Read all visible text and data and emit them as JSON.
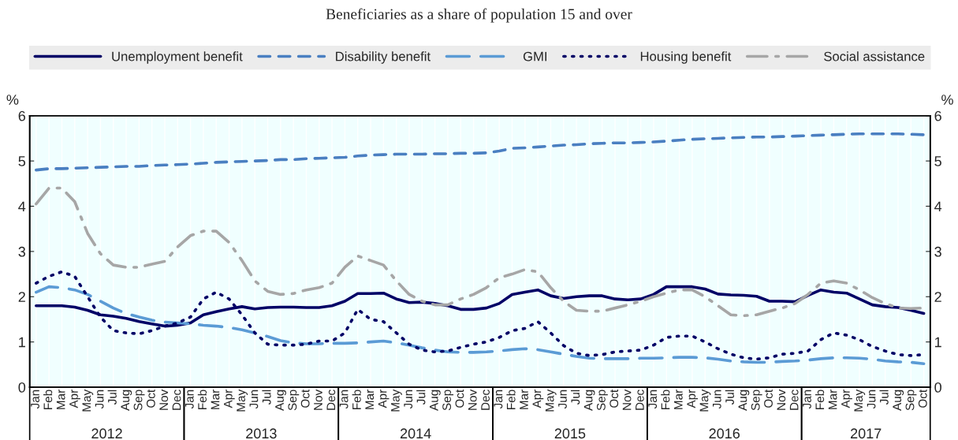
{
  "chart_data": {
    "type": "line",
    "title": "Beneficiaries as a share of population 15 and over",
    "ylabel": "%",
    "y2label": "%",
    "categories": [
      "Jan",
      "Feb",
      "Mar",
      "Apr",
      "May",
      "Jun",
      "Jul",
      "Aug",
      "Sep",
      "Oct",
      "Nov",
      "Dec",
      "Jan",
      "Feb",
      "Mar",
      "Apr",
      "May",
      "Jun",
      "Jul",
      "Aug",
      "Sep",
      "Oct",
      "Nov",
      "Dec",
      "Jan",
      "Feb",
      "Mar",
      "Apr",
      "May",
      "Jun",
      "Jul",
      "Aug",
      "Sep",
      "Oct",
      "Nov",
      "Dec",
      "Jan",
      "Feb",
      "Mar",
      "Apr",
      "May",
      "Jun",
      "Jul",
      "Aug",
      "Sep",
      "Oct",
      "Nov",
      "Dec",
      "Jan",
      "Feb",
      "Mar",
      "Apr",
      "May",
      "Jun",
      "Jul",
      "Aug",
      "Sep",
      "Oct",
      "Nov",
      "Dec",
      "Jan",
      "Feb",
      "Mar",
      "Apr",
      "May",
      "Jun",
      "Jul",
      "Aug",
      "Sep",
      "Oct"
    ],
    "annotations": [
      "2012",
      "2013",
      "2014",
      "2015",
      "2016",
      "2017"
    ],
    "series": [
      {
        "name": "Unemployment benefit",
        "color": "#000066",
        "line_style": "solid",
        "values": [
          1.8,
          1.8,
          1.8,
          1.77,
          1.7,
          1.6,
          1.57,
          1.52,
          1.45,
          1.4,
          1.35,
          1.37,
          1.42,
          1.6,
          1.67,
          1.73,
          1.78,
          1.73,
          1.76,
          1.77,
          1.77,
          1.76,
          1.76,
          1.8,
          1.9,
          2.07,
          2.07,
          2.08,
          1.95,
          1.87,
          1.88,
          1.85,
          1.8,
          1.72,
          1.72,
          1.75,
          1.85,
          2.05,
          2.1,
          2.15,
          2.02,
          1.96,
          2.0,
          2.02,
          2.02,
          1.95,
          1.93,
          1.95,
          2.05,
          2.22,
          2.22,
          2.22,
          2.17,
          2.06,
          2.04,
          2.03,
          2.01,
          1.9,
          1.9,
          1.89,
          2.03,
          2.15,
          2.1,
          2.08,
          1.95,
          1.82,
          1.78,
          1.76,
          1.7,
          1.63
        ]
      },
      {
        "name": "Disability benefit",
        "color": "#4a7fc1",
        "line_style": "dashed",
        "values": [
          4.8,
          4.83,
          4.83,
          4.84,
          4.85,
          4.86,
          4.87,
          4.88,
          4.88,
          4.9,
          4.91,
          4.92,
          4.93,
          4.95,
          4.97,
          4.98,
          4.99,
          5.0,
          5.01,
          5.03,
          5.03,
          5.05,
          5.06,
          5.07,
          5.08,
          5.11,
          5.13,
          5.14,
          5.15,
          5.15,
          5.15,
          5.16,
          5.16,
          5.17,
          5.17,
          5.18,
          5.22,
          5.28,
          5.29,
          5.31,
          5.33,
          5.35,
          5.36,
          5.38,
          5.39,
          5.4,
          5.4,
          5.41,
          5.42,
          5.44,
          5.46,
          5.48,
          5.49,
          5.5,
          5.51,
          5.52,
          5.53,
          5.53,
          5.54,
          5.55,
          5.56,
          5.57,
          5.58,
          5.59,
          5.6,
          5.6,
          5.6,
          5.6,
          5.59,
          5.58
        ]
      },
      {
        "name": "GMI",
        "color": "#5b9bd5",
        "line_style": "longdash",
        "values": [
          2.1,
          2.22,
          2.2,
          2.15,
          2.05,
          1.9,
          1.75,
          1.63,
          1.55,
          1.48,
          1.44,
          1.42,
          1.4,
          1.37,
          1.35,
          1.32,
          1.27,
          1.2,
          1.12,
          1.03,
          0.98,
          0.96,
          0.96,
          0.97,
          0.97,
          0.98,
          1.0,
          1.02,
          0.98,
          0.93,
          0.87,
          0.82,
          0.78,
          0.77,
          0.77,
          0.78,
          0.8,
          0.83,
          0.85,
          0.83,
          0.78,
          0.73,
          0.68,
          0.64,
          0.63,
          0.63,
          0.63,
          0.64,
          0.64,
          0.65,
          0.66,
          0.66,
          0.65,
          0.62,
          0.58,
          0.56,
          0.55,
          0.55,
          0.57,
          0.58,
          0.6,
          0.63,
          0.65,
          0.65,
          0.64,
          0.62,
          0.58,
          0.56,
          0.55,
          0.52
        ]
      },
      {
        "name": "Housing benefit",
        "color": "#000066",
        "line_style": "dotted",
        "values": [
          2.3,
          2.45,
          2.55,
          2.45,
          2.0,
          1.55,
          1.25,
          1.2,
          1.18,
          1.25,
          1.35,
          1.42,
          1.55,
          1.95,
          2.1,
          1.95,
          1.6,
          1.2,
          0.95,
          0.93,
          0.93,
          0.95,
          1.02,
          1.02,
          1.2,
          1.72,
          1.5,
          1.45,
          1.2,
          0.95,
          0.82,
          0.78,
          0.8,
          0.88,
          0.95,
          1.0,
          1.1,
          1.25,
          1.3,
          1.45,
          1.2,
          0.92,
          0.75,
          0.7,
          0.72,
          0.78,
          0.8,
          0.82,
          0.93,
          1.1,
          1.13,
          1.13,
          1.0,
          0.85,
          0.73,
          0.65,
          0.62,
          0.65,
          0.73,
          0.75,
          0.8,
          1.05,
          1.2,
          1.15,
          1.05,
          0.9,
          0.8,
          0.72,
          0.7,
          0.72
        ]
      },
      {
        "name": "Social assistance",
        "color": "#a6a6a6",
        "line_style": "dashdot",
        "values": [
          4.05,
          4.4,
          4.4,
          4.1,
          3.4,
          2.95,
          2.7,
          2.65,
          2.65,
          2.72,
          2.78,
          3.1,
          3.35,
          3.45,
          3.45,
          3.2,
          2.8,
          2.35,
          2.12,
          2.05,
          2.07,
          2.15,
          2.2,
          2.3,
          2.65,
          2.9,
          2.8,
          2.7,
          2.35,
          2.05,
          1.9,
          1.82,
          1.82,
          1.95,
          2.05,
          2.2,
          2.42,
          2.5,
          2.6,
          2.55,
          2.2,
          1.9,
          1.7,
          1.68,
          1.68,
          1.75,
          1.82,
          1.9,
          2.0,
          2.08,
          2.15,
          2.15,
          2.0,
          1.8,
          1.6,
          1.58,
          1.6,
          1.68,
          1.75,
          1.85,
          2.05,
          2.3,
          2.35,
          2.3,
          2.15,
          1.98,
          1.85,
          1.75,
          1.74,
          1.75
        ]
      }
    ],
    "ylim": [
      0,
      6
    ],
    "yticks": [
      0,
      1,
      2,
      3,
      4,
      5,
      6
    ],
    "y2lim": [
      0,
      6
    ],
    "y2ticks": [
      0,
      1,
      2,
      3,
      4,
      5,
      6
    ],
    "grid": "x",
    "legend": "top"
  }
}
